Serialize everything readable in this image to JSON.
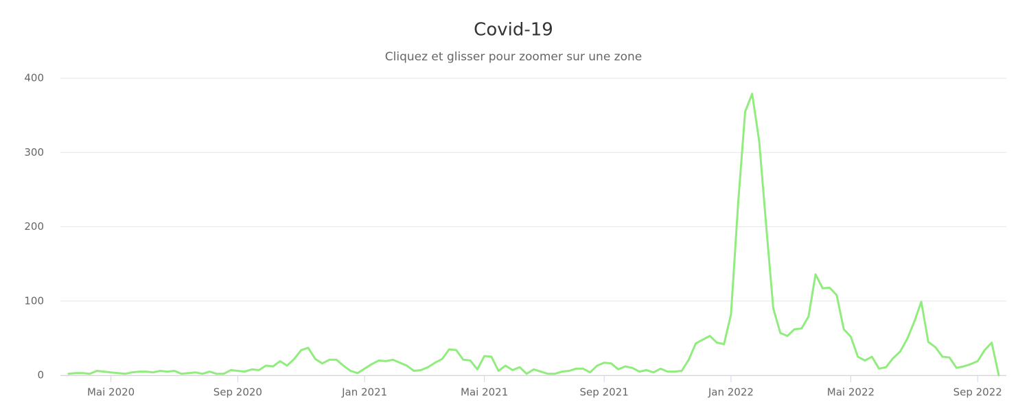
{
  "chart_data": {
    "type": "line",
    "title": "Covid-19",
    "subtitle": "Cliquez et glisser pour zoomer sur une zone",
    "categories": [
      null,
      null,
      null,
      null,
      null,
      null,
      "Mai 2020",
      null,
      null,
      null,
      null,
      null,
      null,
      null,
      null,
      null,
      null,
      null,
      null,
      null,
      null,
      null,
      null,
      null,
      "Sep 2020",
      null,
      null,
      null,
      null,
      null,
      null,
      null,
      null,
      null,
      null,
      null,
      null,
      null,
      null,
      null,
      null,
      null,
      "Jan 2021",
      null,
      null,
      null,
      null,
      null,
      null,
      null,
      null,
      null,
      null,
      null,
      null,
      null,
      null,
      null,
      null,
      "Mai 2021",
      null,
      null,
      null,
      null,
      null,
      null,
      null,
      null,
      null,
      null,
      null,
      null,
      null,
      null,
      null,
      null,
      "Sep 2021",
      null,
      null,
      null,
      null,
      null,
      null,
      null,
      null,
      null,
      null,
      null,
      null,
      null,
      null,
      null,
      null,
      null,
      "Jan 2022",
      null,
      null,
      null,
      null,
      null,
      null,
      null,
      null,
      null,
      null,
      null,
      null,
      null,
      null,
      null,
      null,
      "Mai 2022",
      null,
      null,
      null,
      null,
      null,
      null,
      null,
      null,
      null,
      null,
      null,
      null,
      null,
      null,
      null,
      null,
      null,
      "Sep 2022",
      null,
      null,
      null
    ],
    "series": [
      {
        "name": "Covid-19",
        "color": "#90ed7d",
        "values": [
          2,
          3,
          3,
          2,
          6,
          5,
          4,
          3,
          2,
          4,
          5,
          5,
          4,
          6,
          5,
          6,
          2,
          3,
          4,
          2,
          5,
          2,
          2,
          7,
          6,
          5,
          8,
          7,
          13,
          12,
          19,
          13,
          22,
          34,
          37,
          22,
          16,
          21,
          21,
          13,
          6,
          3,
          9,
          15,
          20,
          19,
          21,
          17,
          13,
          6,
          7,
          11,
          17,
          22,
          35,
          34,
          21,
          20,
          8,
          26,
          25,
          6,
          13,
          7,
          11,
          2,
          8,
          5,
          2,
          2,
          5,
          6,
          9,
          9,
          4,
          13,
          17,
          16,
          8,
          12,
          10,
          5,
          7,
          4,
          9,
          5,
          5,
          6,
          21,
          43,
          48,
          53,
          44,
          42,
          82,
          230,
          355,
          379,
          315,
          200,
          90,
          57,
          53,
          62,
          63,
          79,
          136,
          117,
          118,
          108,
          62,
          52,
          25,
          20,
          25,
          9,
          11,
          23,
          32,
          49,
          72,
          99,
          45,
          38,
          25,
          24,
          10,
          12,
          15,
          19,
          34,
          44,
          0
        ]
      }
    ],
    "ylim": [
      0,
      400
    ],
    "yticks": [
      0,
      100,
      200,
      300,
      400
    ],
    "grid": true
  }
}
